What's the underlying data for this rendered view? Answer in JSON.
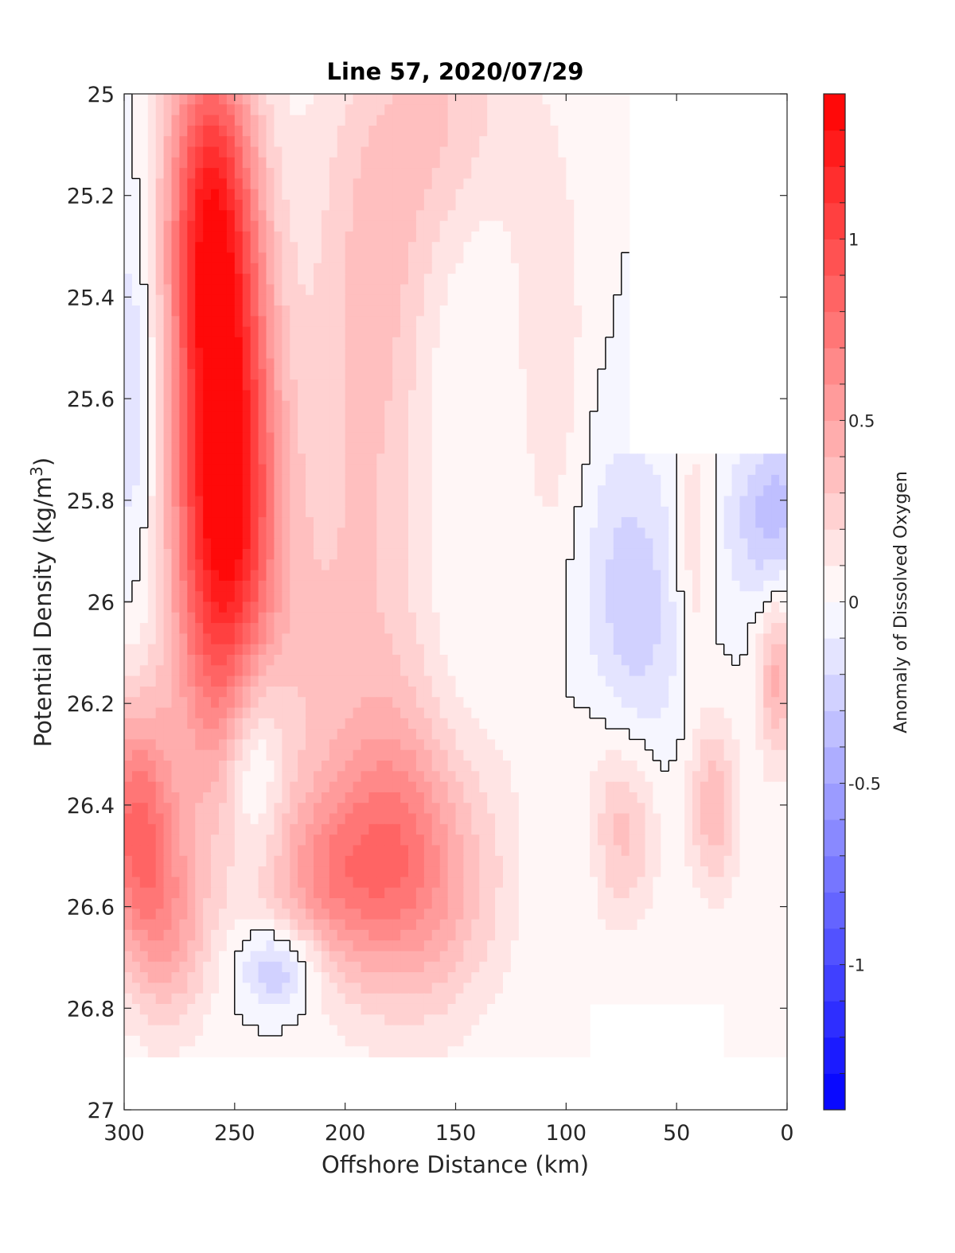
{
  "chart_data": {
    "type": "heatmap",
    "subtype": "filled-contour",
    "title": "Line 57, 2020/07/29",
    "xlabel": "Offshore Distance (km)",
    "ylabel": "Potential Density (kg/m^3)",
    "ylabel_main": "Potential Density (kg/m",
    "ylabel_sup": "3",
    "ylabel_close": ")",
    "xlim": [
      300,
      0
    ],
    "ylim": [
      25,
      27
    ],
    "x_reversed": true,
    "y_reversed": true,
    "xticks": [
      {
        "value": 300,
        "label": "300"
      },
      {
        "value": 250,
        "label": "250"
      },
      {
        "value": 200,
        "label": "200"
      },
      {
        "value": 150,
        "label": "150"
      },
      {
        "value": 100,
        "label": "100"
      },
      {
        "value": 50,
        "label": "50"
      },
      {
        "value": 0,
        "label": "0"
      }
    ],
    "yticks": [
      {
        "value": 25,
        "label": "25"
      },
      {
        "value": 25.2,
        "label": "25.2"
      },
      {
        "value": 25.4,
        "label": "25.4"
      },
      {
        "value": 25.6,
        "label": "25.6"
      },
      {
        "value": 25.8,
        "label": "25.8"
      },
      {
        "value": 26,
        "label": "26"
      },
      {
        "value": 26.2,
        "label": "26.2"
      },
      {
        "value": 26.4,
        "label": "26.4"
      },
      {
        "value": 26.6,
        "label": "26.6"
      },
      {
        "value": 26.8,
        "label": "26.8"
      },
      {
        "value": 27,
        "label": "27"
      }
    ],
    "colorbar": {
      "label": "Anomaly of Dissolved Oxygen",
      "range": [
        -1.4,
        1.4
      ],
      "levels_step": 0.1,
      "low_color": "#0000ff",
      "mid_color": "#ffffff",
      "high_color": "#ff0000",
      "ticks": [
        {
          "value": 1,
          "label": "1"
        },
        {
          "value": 0.5,
          "label": "0.5"
        },
        {
          "value": 0,
          "label": "0"
        },
        {
          "value": -0.5,
          "label": "-0.5"
        },
        {
          "value": -1,
          "label": "-1"
        }
      ]
    },
    "zero_contour_color": "#000000",
    "features": [
      {
        "x": 255,
        "y": 25.75,
        "value": 1.4,
        "sx": 16,
        "sy": 0.38
      },
      {
        "x": 262,
        "y": 25.2,
        "value": 0.85,
        "sx": 14,
        "sy": 0.25
      },
      {
        "x": 295,
        "y": 26.45,
        "value": 0.8,
        "sx": 13,
        "sy": 0.18
      },
      {
        "x": 278,
        "y": 26.65,
        "value": 0.35,
        "sx": 12,
        "sy": 0.14
      },
      {
        "x": 170,
        "y": 26.5,
        "value": 0.75,
        "sx": 28,
        "sy": 0.2
      },
      {
        "x": 210,
        "y": 26.55,
        "value": 0.35,
        "sx": 20,
        "sy": 0.12
      },
      {
        "x": 185,
        "y": 25.35,
        "value": 0.35,
        "sx": 22,
        "sy": 0.35
      },
      {
        "x": 200,
        "y": 26.05,
        "value": 0.25,
        "sx": 45,
        "sy": 0.3
      },
      {
        "x": 150,
        "y": 25.05,
        "value": 0.3,
        "sx": 20,
        "sy": 0.2
      },
      {
        "x": 110,
        "y": 25.5,
        "value": 0.25,
        "sx": 12,
        "sy": 0.3
      },
      {
        "x": 80,
        "y": 26.45,
        "value": 0.45,
        "sx": 14,
        "sy": 0.13
      },
      {
        "x": 33,
        "y": 26.4,
        "value": 0.4,
        "sx": 8,
        "sy": 0.12
      },
      {
        "x": 42,
        "y": 25.85,
        "value": 0.28,
        "sx": 6,
        "sy": 0.2
      },
      {
        "x": 5,
        "y": 26.15,
        "value": 0.45,
        "sx": 6,
        "sy": 0.12
      },
      {
        "x": 242,
        "y": 26.3,
        "value": -0.4,
        "sx": 10,
        "sy": 0.15
      },
      {
        "x": 230,
        "y": 26.72,
        "value": -0.38,
        "sx": 13,
        "sy": 0.06
      },
      {
        "x": 295,
        "y": 25.6,
        "value": -0.22,
        "sx": 8,
        "sy": 0.3
      },
      {
        "x": 70,
        "y": 26.0,
        "value": -0.28,
        "sx": 18,
        "sy": 0.22
      },
      {
        "x": 10,
        "y": 25.8,
        "value": -0.55,
        "sx": 12,
        "sy": 0.12
      }
    ],
    "white_masks": [
      {
        "x": 140,
        "y": 25.8,
        "sx": 20,
        "sy": 0.45
      },
      {
        "x": 100,
        "y": 26.5,
        "sx": 14,
        "sy": 0.25
      },
      {
        "x": 25,
        "y": 25.4,
        "sx": 20,
        "sy": 0.35
      }
    ],
    "no_data_regions": [
      {
        "x_from": 300,
        "x_to": 0,
        "y_from": 26.9,
        "y_to": 27
      },
      {
        "x_from": 70,
        "x_to": 0,
        "y_from": 25,
        "y_to": 25.7
      },
      {
        "x_from": 90,
        "x_to": 30,
        "y_from": 26.8,
        "y_to": 26.9
      }
    ]
  }
}
